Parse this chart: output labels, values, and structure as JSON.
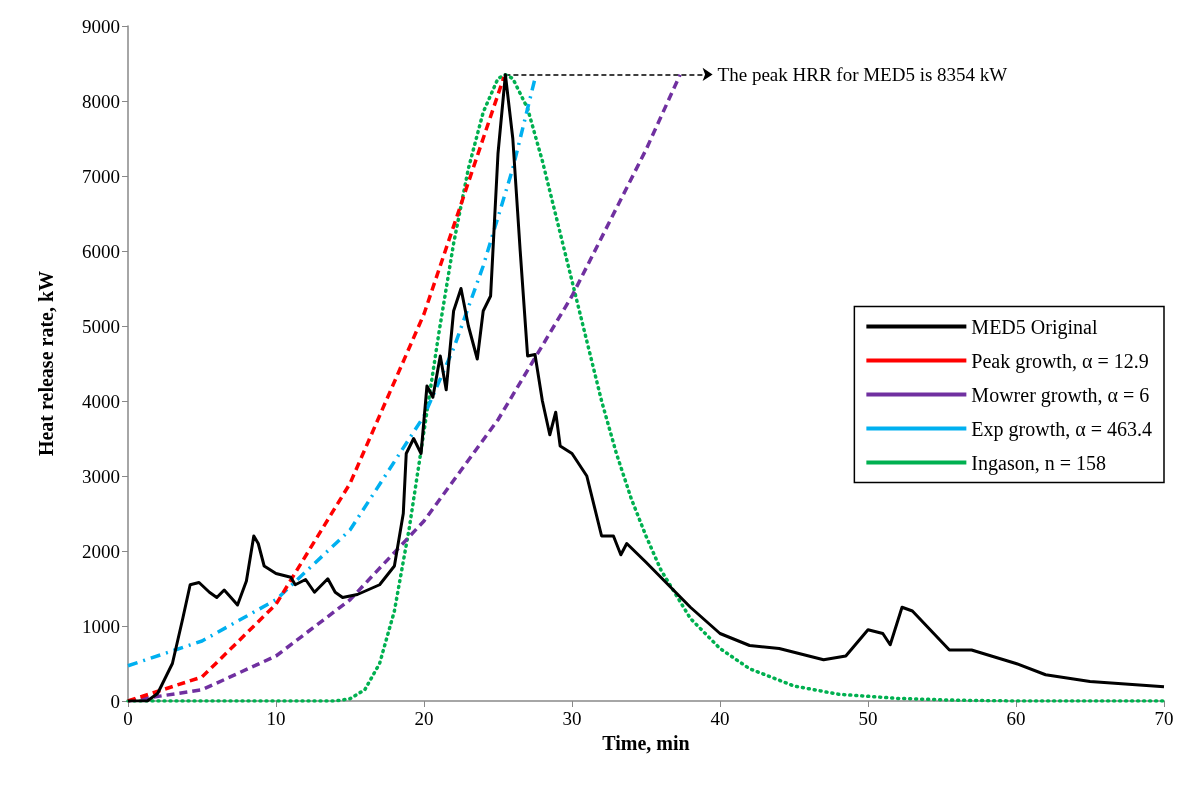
{
  "chart_data": {
    "type": "line",
    "xlabel": "Time, min",
    "ylabel": "Heat release rate, kW",
    "xlim": [
      0,
      70
    ],
    "xticks": [
      0,
      10,
      20,
      30,
      40,
      50,
      60,
      70
    ],
    "ylim": [
      0,
      9000
    ],
    "yticks": [
      0,
      1000,
      2000,
      3000,
      4000,
      5000,
      6000,
      7000,
      8000,
      9000
    ],
    "grid": false,
    "legend": "right",
    "marker": "none",
    "annotations": [
      {
        "text": "The peak HRR for MED5 is 8354 kW",
        "x": 25.5,
        "y": 8354
      }
    ],
    "series": [
      {
        "name": "MED5 Original",
        "color": "#000000",
        "line_style": "solid",
        "x": [
          0,
          1.3,
          2,
          3,
          3.7,
          4.2,
          4.8,
          5.5,
          6,
          6.5,
          7,
          7.4,
          8,
          8.5,
          8.8,
          9.2,
          10,
          11,
          11.3,
          12,
          12.6,
          13.5,
          14,
          14.5,
          15.5,
          17,
          18,
          18.6,
          18.8,
          19.3,
          19.8,
          20.2,
          20.6,
          21.1,
          21.5,
          22,
          22.5,
          23,
          23.6,
          24,
          24.5,
          25,
          25.5,
          26,
          26.5,
          27,
          27.5,
          28,
          28.5,
          28.9,
          29.2,
          30,
          31,
          32,
          32.8,
          33.3,
          33.7,
          35,
          38,
          40,
          42,
          44,
          47,
          48.5,
          50,
          51,
          51.5,
          52.3,
          53,
          55.5,
          57,
          60,
          62,
          65,
          70
        ],
        "values": [
          0,
          0,
          100,
          500,
          1100,
          1550,
          1580,
          1450,
          1380,
          1480,
          1370,
          1280,
          1600,
          2200,
          2100,
          1800,
          1700,
          1650,
          1550,
          1620,
          1450,
          1630,
          1450,
          1380,
          1420,
          1550,
          1800,
          2500,
          3300,
          3500,
          3300,
          4200,
          4050,
          4600,
          4150,
          5200,
          5500,
          5000,
          4560,
          5200,
          5400,
          7300,
          8350,
          7500,
          6000,
          4600,
          4620,
          4000,
          3550,
          3850,
          3400,
          3300,
          3000,
          2200,
          2200,
          1950,
          2100,
          1850,
          1250,
          900,
          740,
          700,
          550,
          600,
          950,
          900,
          750,
          1250,
          1200,
          680,
          680,
          500,
          350,
          260,
          190
        ]
      },
      {
        "name": "Peak growth, α = 12.9",
        "color": "#ff0000",
        "line_style": "dashed",
        "x": [
          0,
          5,
          10,
          15,
          20,
          25.4
        ],
        "values": [
          0,
          320,
          1290,
          2900,
          5160,
          8320
        ]
      },
      {
        "name": "Mowrer growth, α = 6",
        "color": "#7030a0",
        "line_style": "dashed",
        "x": [
          0,
          5,
          10,
          15,
          20,
          25,
          30,
          35,
          37.3
        ],
        "values": [
          0,
          150,
          600,
          1350,
          2400,
          3750,
          5400,
          7350,
          8350
        ]
      },
      {
        "name": "Exp growth, α = 463.4",
        "color": "#00b0f0",
        "line_style": "dashdot",
        "x": [
          0,
          5,
          10,
          15,
          20,
          22,
          24,
          26,
          27.5
        ],
        "values": [
          470,
          800,
          1350,
          2280,
          3800,
          4700,
          5800,
          7100,
          8300
        ]
      },
      {
        "name": "Ingason, n = 158",
        "color": "#00b050",
        "line_style": "dotted",
        "x": [
          0,
          14,
          15,
          16,
          17,
          18,
          19,
          20,
          21,
          22,
          23,
          24,
          25,
          25.5,
          26,
          27,
          28,
          29,
          30,
          31,
          32,
          33,
          34,
          35,
          36,
          38,
          40,
          42,
          45,
          48,
          52,
          56,
          60,
          70
        ],
        "values": [
          0,
          0,
          30,
          150,
          500,
          1200,
          2300,
          3600,
          4900,
          6100,
          7100,
          7850,
          8300,
          8350,
          8300,
          7900,
          7200,
          6400,
          5600,
          4800,
          4000,
          3300,
          2700,
          2200,
          1750,
          1100,
          700,
          430,
          200,
          90,
          35,
          10,
          0,
          0
        ]
      }
    ]
  }
}
